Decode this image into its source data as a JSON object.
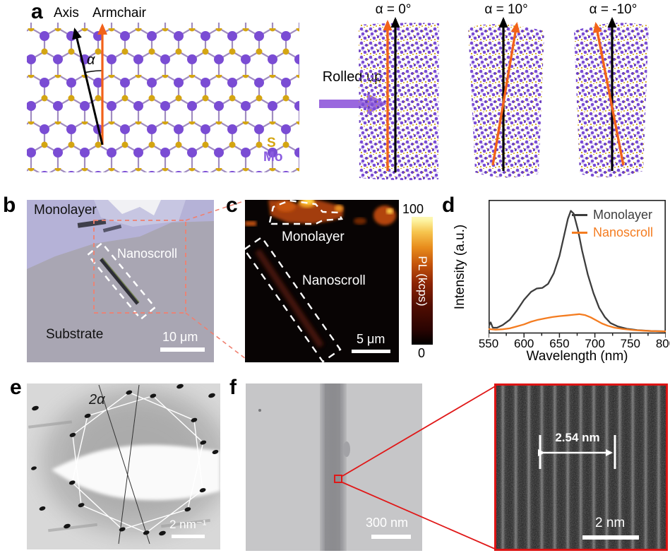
{
  "figure": {
    "panel_a": {
      "label": "a",
      "axis_arrow": "Axis",
      "armchair_arrow": "Armchair",
      "alpha": "α",
      "rolled_up": "Rolled up",
      "legend": {
        "s": "S",
        "mo": "Mo"
      },
      "scrolls": [
        {
          "label": "α = 0°"
        },
        {
          "label": "α = 10°"
        },
        {
          "label": "α = -10°"
        }
      ]
    },
    "panel_b": {
      "label": "b",
      "region_monolayer": "Monolayer",
      "region_nanoscroll": "Nanoscroll",
      "region_substrate": "Substrate",
      "scale_bar": "10 μm"
    },
    "panel_c": {
      "label": "c",
      "region_monolayer": "Monolayer",
      "region_nanoscroll": "Nanoscroll",
      "scale_bar": "5 μm",
      "colorbar": {
        "max": "100",
        "min": "0",
        "title": "PL (kcps)"
      }
    },
    "panel_d": {
      "label": "d",
      "x_axis": "Wavelength (nm)",
      "y_axis": "Intensity (a.u.)"
    },
    "panel_e": {
      "label": "e",
      "angle": "2α",
      "scale_bar": "2 nm⁻¹"
    },
    "panel_f": {
      "label": "f",
      "scale_bar": "300 nm",
      "inset": {
        "distance": "2.54 nm",
        "scale_bar": "2 nm"
      }
    }
  },
  "colors": {
    "mo_purple": "#7a4cd4",
    "s_gold": "#d4a512",
    "armchair_orange": "#f2621a",
    "axis_black": "#000000",
    "rolled_arrow_purple": "#9a68de",
    "red_zoom_box": "#e01818",
    "red_dashed_box": "#f08070",
    "colorbar_top": "#fdf8b8",
    "colorbar_bottom": "#000000"
  },
  "chart_data": {
    "type": "line",
    "title": "",
    "xlabel": "Wavelength (nm)",
    "ylabel": "Intensity (a.u.)",
    "xlim": [
      550,
      800
    ],
    "ylim": [
      0,
      1
    ],
    "x_ticks": [
      550,
      600,
      650,
      700,
      750,
      800
    ],
    "grid": false,
    "legend_position": "top-right",
    "series": [
      {
        "name": "Monolayer",
        "color": "#3d3d3d",
        "x": [
          550,
          553,
          556,
          562,
          570,
          580,
          590,
          600,
          610,
          618,
          626,
          634,
          642,
          650,
          656,
          662,
          666,
          670,
          676,
          682,
          690,
          698,
          706,
          714,
          722,
          732,
          745,
          760,
          780,
          800
        ],
        "y": [
          0.05,
          0.08,
          0.04,
          0.04,
          0.06,
          0.1,
          0.17,
          0.25,
          0.31,
          0.335,
          0.34,
          0.37,
          0.45,
          0.58,
          0.72,
          0.86,
          0.92,
          0.9,
          0.78,
          0.62,
          0.44,
          0.3,
          0.19,
          0.12,
          0.075,
          0.05,
          0.032,
          0.022,
          0.015,
          0.012
        ],
        "peak_nm": 666
      },
      {
        "name": "Nanoscroll",
        "color": "#f47c20",
        "x": [
          550,
          560,
          570,
          580,
          590,
          600,
          610,
          620,
          630,
          640,
          650,
          660,
          670,
          678,
          686,
          694,
          702,
          710,
          718,
          728,
          740,
          755,
          770,
          785,
          800
        ],
        "y": [
          0.03,
          0.025,
          0.028,
          0.035,
          0.05,
          0.065,
          0.085,
          0.1,
          0.11,
          0.12,
          0.127,
          0.132,
          0.138,
          0.142,
          0.135,
          0.118,
          0.095,
          0.072,
          0.055,
          0.04,
          0.03,
          0.022,
          0.017,
          0.014,
          0.012
        ],
        "peak_nm": 678
      }
    ]
  }
}
